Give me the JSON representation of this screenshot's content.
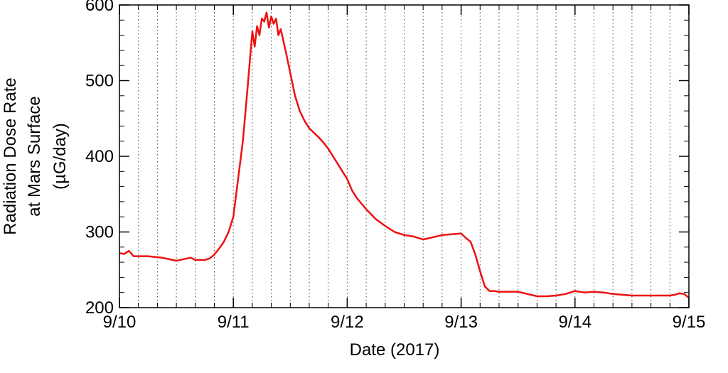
{
  "chart_data": {
    "type": "line",
    "title": "",
    "xlabel": "Date (2017)",
    "ylabel_lines": [
      "Radiation Dose Rate",
      "at Mars Surface",
      "(µG/day)"
    ],
    "x_ticks": [
      "9/10",
      "9/11",
      "9/12",
      "9/13",
      "9/14",
      "9/15"
    ],
    "y_ticks": [
      "200",
      "300",
      "400",
      "500",
      "600"
    ],
    "xlim": [
      "2017-09-10",
      "2017-09-15"
    ],
    "ylim": [
      200,
      600
    ],
    "grid": "vertical dotted lines every 4 hours",
    "line_color": "#ee1111",
    "series": [
      {
        "x": [
          "2017-09-10T00:00",
          "2017-09-10T01:00",
          "2017-09-10T02:00",
          "2017-09-10T03:00",
          "2017-09-10T06:00",
          "2017-09-10T09:00",
          "2017-09-10T12:00",
          "2017-09-10T15:00",
          "2017-09-10T16:00",
          "2017-09-10T18:00",
          "2017-09-10T19:00",
          "2017-09-10T20:00",
          "2017-09-10T21:00",
          "2017-09-10T22:00",
          "2017-09-10T23:00",
          "2017-09-11T00:00",
          "2017-09-11T01:00",
          "2017-09-11T02:00",
          "2017-09-11T03:00",
          "2017-09-11T04:00",
          "2017-09-11T04:30",
          "2017-09-11T05:00",
          "2017-09-11T05:30",
          "2017-09-11T06:00",
          "2017-09-11T06:30",
          "2017-09-11T07:00",
          "2017-09-11T07:30",
          "2017-09-11T08:00",
          "2017-09-11T08:30",
          "2017-09-11T09:00",
          "2017-09-11T09:30",
          "2017-09-11T10:00",
          "2017-09-11T11:00",
          "2017-09-11T12:00",
          "2017-09-11T12:30",
          "2017-09-11T13:00",
          "2017-09-11T14:00",
          "2017-09-11T15:00",
          "2017-09-11T16:00",
          "2017-09-11T18:00",
          "2017-09-11T19:00",
          "2017-09-11T20:00",
          "2017-09-11T21:00",
          "2017-09-11T22:00",
          "2017-09-11T23:00",
          "2017-09-12T00:00",
          "2017-09-12T01:00",
          "2017-09-12T02:00",
          "2017-09-12T04:00",
          "2017-09-12T06:00",
          "2017-09-12T08:00",
          "2017-09-12T10:00",
          "2017-09-12T12:00",
          "2017-09-12T14:00",
          "2017-09-12T16:00",
          "2017-09-12T18:00",
          "2017-09-12T20:00",
          "2017-09-12T22:00",
          "2017-09-13T00:00",
          "2017-09-13T01:00",
          "2017-09-13T02:00",
          "2017-09-13T03:00",
          "2017-09-13T04:00",
          "2017-09-13T05:00",
          "2017-09-13T06:00",
          "2017-09-13T07:00",
          "2017-09-13T08:00",
          "2017-09-13T10:00",
          "2017-09-13T12:00",
          "2017-09-13T14:00",
          "2017-09-13T16:00",
          "2017-09-13T18:00",
          "2017-09-13T20:00",
          "2017-09-13T22:00",
          "2017-09-14T00:00",
          "2017-09-14T02:00",
          "2017-09-14T04:00",
          "2017-09-14T06:00",
          "2017-09-14T08:00",
          "2017-09-14T12:00",
          "2017-09-14T16:00",
          "2017-09-14T20:00",
          "2017-09-14T21:00",
          "2017-09-14T22:00",
          "2017-09-14T23:00",
          "2017-09-15T00:00"
        ],
        "values": [
          272,
          271,
          275,
          268,
          268,
          266,
          262,
          266,
          263,
          263,
          265,
          270,
          278,
          287,
          300,
          320,
          370,
          420,
          490,
          565,
          545,
          572,
          560,
          582,
          578,
          590,
          570,
          585,
          575,
          582,
          560,
          568,
          540,
          510,
          495,
          480,
          460,
          447,
          437,
          425,
          418,
          410,
          400,
          390,
          380,
          370,
          355,
          345,
          330,
          317,
          308,
          300,
          296,
          294,
          290,
          293,
          296,
          297,
          298,
          292,
          287,
          270,
          248,
          228,
          222,
          222,
          221,
          221,
          221,
          218,
          215,
          215,
          216,
          218,
          222,
          220,
          221,
          220,
          218,
          216,
          216,
          216,
          217,
          219,
          218,
          213
        ]
      }
    ]
  }
}
